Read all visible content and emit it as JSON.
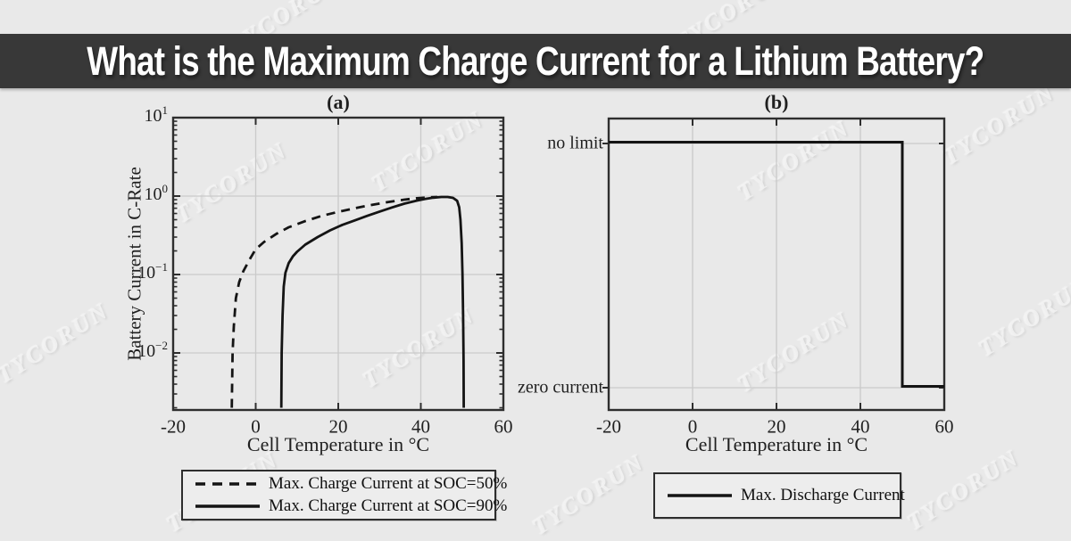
{
  "header": {
    "title": "What is the Maximum Charge Current for a Lithium Battery?"
  },
  "watermark": {
    "text": "TYCORUN"
  },
  "colors": {
    "background": "#e9e9e9",
    "banner": "#383838",
    "grid": "#cacaca",
    "axis": "#2e2e2e",
    "curve": "#141414",
    "text": "#1f1f1f"
  },
  "chart_data": [
    {
      "type": "line",
      "panel_label": "(a)",
      "xlabel": "Cell Temperature in °C",
      "ylabel": "Battery Current in C-Rate",
      "xlim": [
        -20,
        60
      ],
      "x_ticks": [
        -20,
        0,
        20,
        40,
        60
      ],
      "yscale": "log",
      "y_tick_exponents": [
        1,
        0,
        -1,
        -2
      ],
      "ylim_exponents": [
        -2.72,
        1
      ],
      "grid": true,
      "legend_position": "below",
      "series": [
        {
          "name": "Max. Charge Current at SOC=50%",
          "style": "dashed",
          "points": [
            [
              -5.8,
              0.002
            ],
            [
              -5.6,
              0.01
            ],
            [
              -5.3,
              0.022
            ],
            [
              -4.8,
              0.05
            ],
            [
              -4.0,
              0.08
            ],
            [
              -3.0,
              0.11
            ],
            [
              -1.5,
              0.155
            ],
            [
              0,
              0.21
            ],
            [
              2,
              0.26
            ],
            [
              5,
              0.33
            ],
            [
              8,
              0.4
            ],
            [
              12,
              0.48
            ],
            [
              16,
              0.56
            ],
            [
              20,
              0.63
            ],
            [
              24,
              0.7
            ],
            [
              28,
              0.77
            ],
            [
              32,
              0.84
            ],
            [
              36,
              0.9
            ],
            [
              39,
              0.94
            ],
            [
              42,
              0.965
            ],
            [
              44,
              0.975
            ]
          ]
        },
        {
          "name": "Max. Charge Current at SOC=90%",
          "style": "solid",
          "points": [
            [
              6.2,
              0.002
            ],
            [
              6.3,
              0.01
            ],
            [
              6.5,
              0.03
            ],
            [
              6.8,
              0.07
            ],
            [
              7.2,
              0.105
            ],
            [
              8,
              0.14
            ],
            [
              9,
              0.17
            ],
            [
              10,
              0.195
            ],
            [
              12,
              0.24
            ],
            [
              15,
              0.3
            ],
            [
              18,
              0.365
            ],
            [
              21,
              0.43
            ],
            [
              24,
              0.49
            ],
            [
              27,
              0.56
            ],
            [
              30,
              0.635
            ],
            [
              33,
              0.715
            ],
            [
              36,
              0.8
            ],
            [
              39,
              0.875
            ],
            [
              41,
              0.92
            ],
            [
              43,
              0.955
            ],
            [
              45,
              0.975
            ],
            [
              46.5,
              0.975
            ],
            [
              47.8,
              0.95
            ],
            [
              48.8,
              0.87
            ],
            [
              49.3,
              0.72
            ],
            [
              49.6,
              0.5
            ],
            [
              49.9,
              0.25
            ],
            [
              50.1,
              0.1
            ],
            [
              50.25,
              0.03
            ],
            [
              50.35,
              0.008
            ],
            [
              50.4,
              0.002
            ]
          ]
        }
      ]
    },
    {
      "type": "line",
      "panel_label": "(b)",
      "xlabel": "Cell Temperature in °C",
      "xlim": [
        -20,
        60
      ],
      "x_ticks": [
        -20,
        0,
        20,
        40,
        60
      ],
      "y_categories": [
        "no limit",
        "zero current"
      ],
      "grid": true,
      "legend_position": "below",
      "series": [
        {
          "name": "Max. Discharge Current",
          "style": "solid",
          "points": [
            [
              -20,
              "no limit"
            ],
            [
              50,
              "no limit"
            ],
            [
              50,
              "zero current"
            ],
            [
              60,
              "zero current"
            ]
          ]
        }
      ]
    }
  ]
}
